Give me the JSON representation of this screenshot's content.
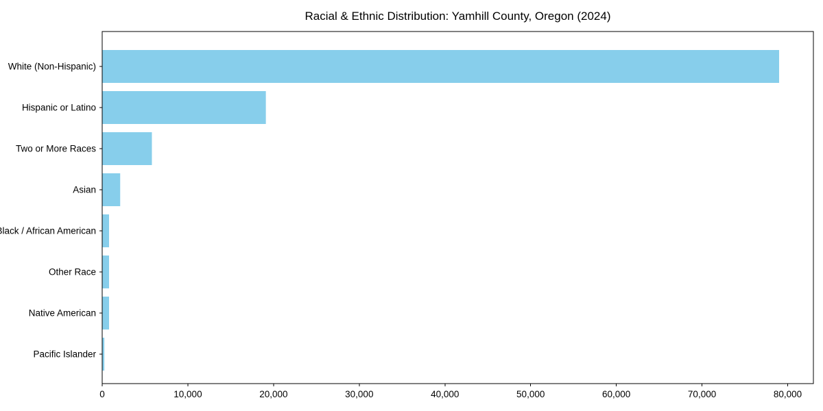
{
  "figure": {
    "background": "#ffffff"
  },
  "chart_data": {
    "type": "bar",
    "orientation": "horizontal",
    "title": "Racial & Ethnic Distribution: Yamhill County, Oregon (2024)",
    "categories": [
      "White (Non-Hispanic)",
      "Hispanic or Latino",
      "Two or More Races",
      "Asian",
      "Black / African American",
      "Other Race",
      "Native American",
      "Pacific Islander"
    ],
    "values": [
      79000,
      19100,
      5800,
      2100,
      800,
      800,
      800,
      250
    ],
    "xlabel": "",
    "ylabel": "",
    "xlim": [
      0,
      83000
    ],
    "xticks": [
      0,
      10000,
      20000,
      30000,
      40000,
      50000,
      60000,
      70000,
      80000
    ],
    "xtick_labels": [
      "0",
      "10,000",
      "20,000",
      "30,000",
      "40,000",
      "50,000",
      "60,000",
      "70,000",
      "80,000"
    ],
    "grid": false,
    "legend_visible": false,
    "bar_color": "#87CEEB",
    "axis_color": "#000000",
    "text_color": "#000000"
  }
}
